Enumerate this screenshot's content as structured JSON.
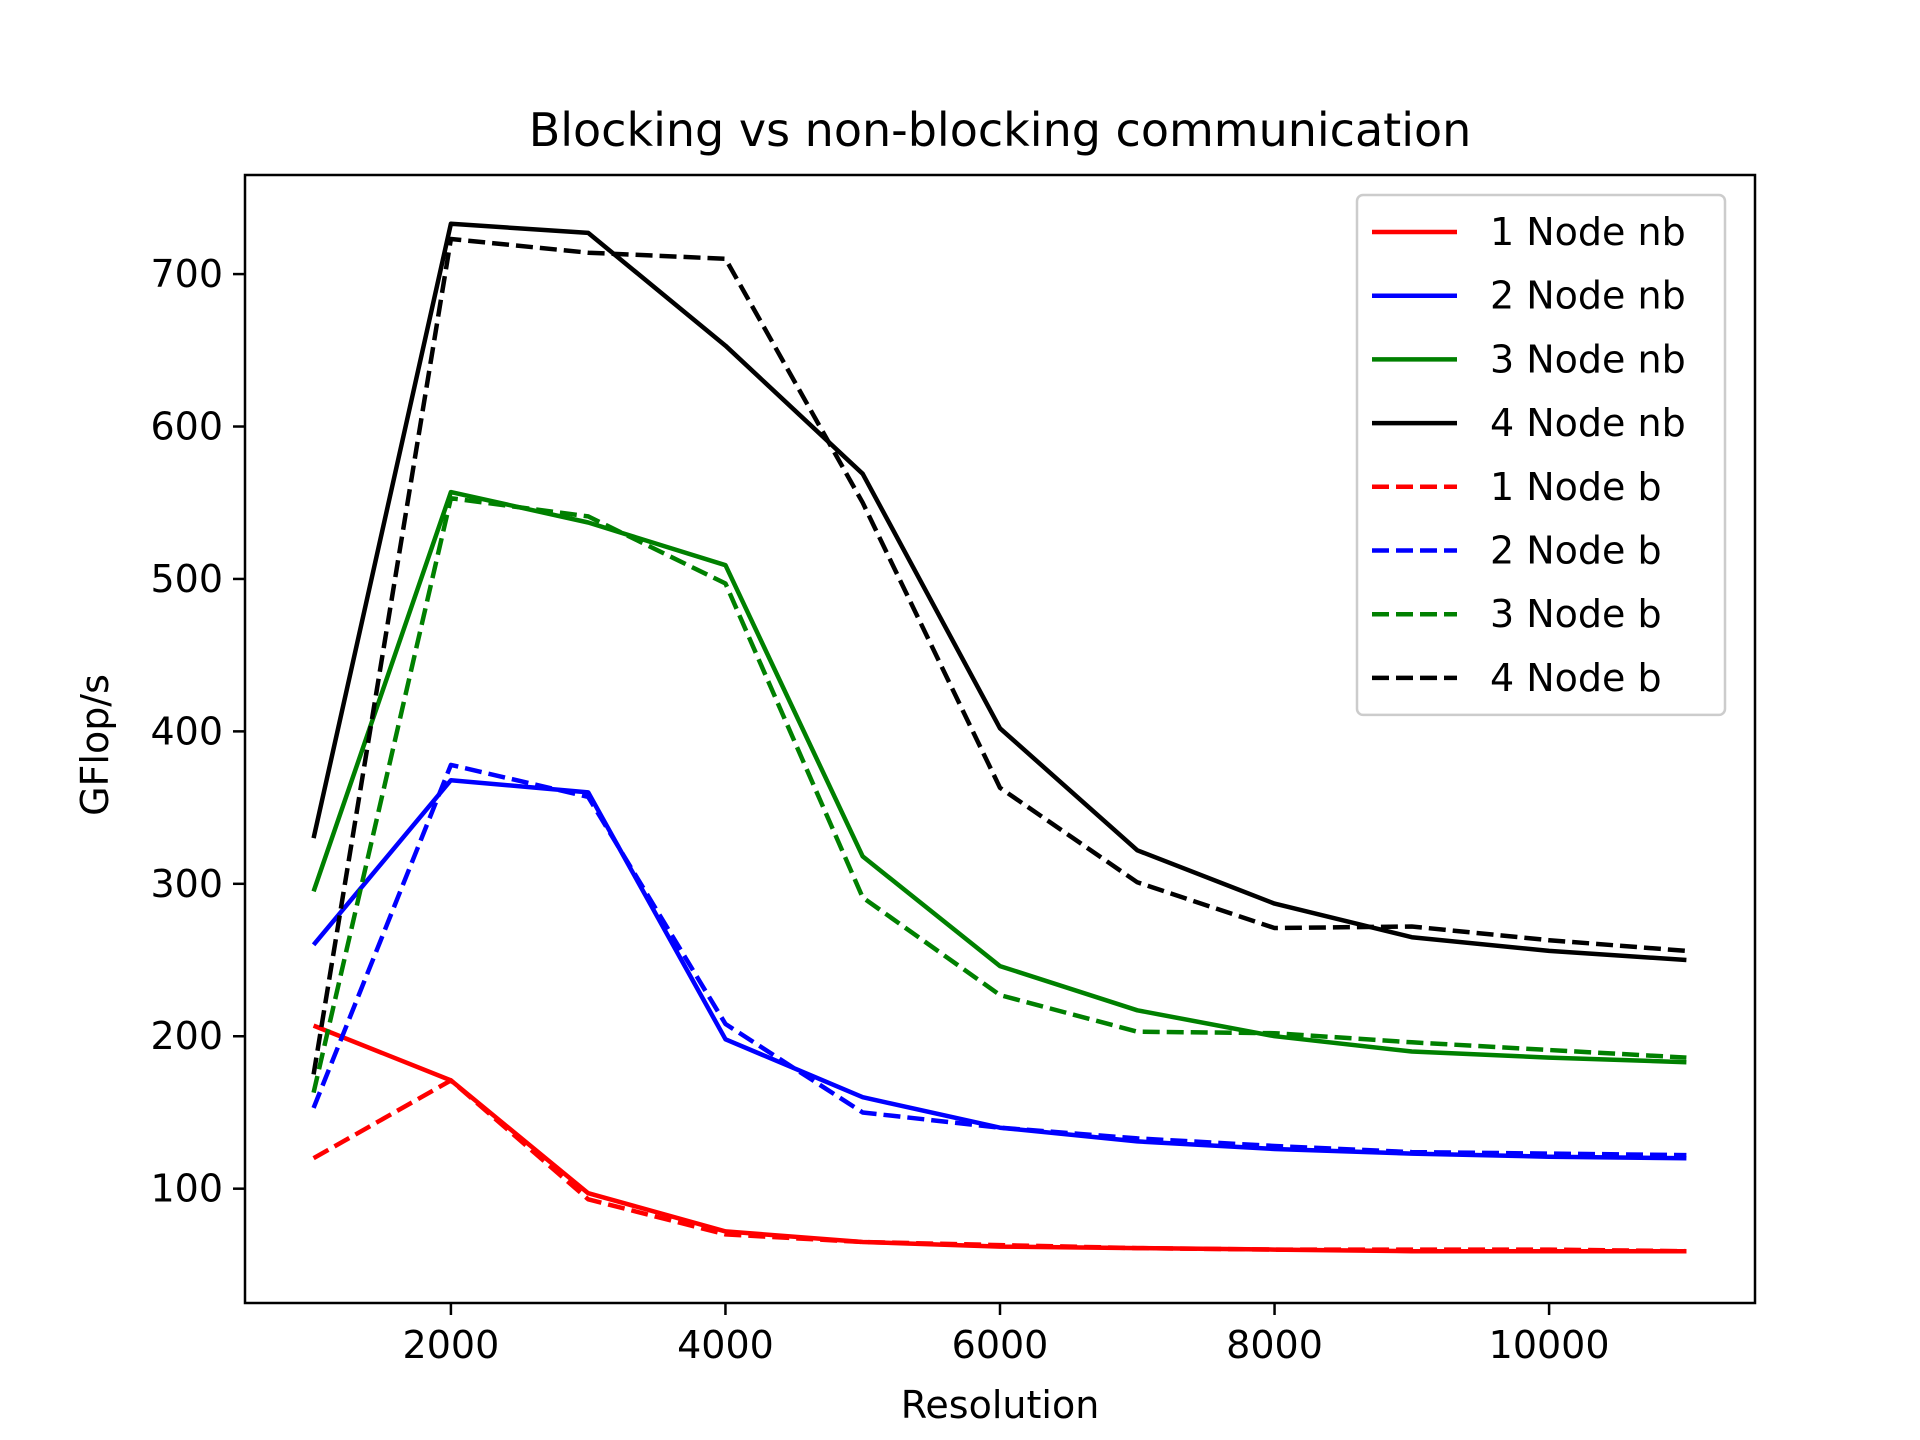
{
  "chart_data": {
    "type": "line",
    "title": "Blocking vs non-blocking communication",
    "xlabel": "Resolution",
    "ylabel": "GFlop/s",
    "xlim": [
      500,
      11500
    ],
    "ylim": [
      25,
      765
    ],
    "xticks": [
      2000,
      4000,
      6000,
      8000,
      10000
    ],
    "yticks": [
      100,
      200,
      300,
      400,
      500,
      600,
      700
    ],
    "grid": false,
    "legend_position": "top-right",
    "x": [
      1000,
      2000,
      3000,
      4000,
      5000,
      6000,
      7000,
      8000,
      9000,
      10000,
      11000
    ],
    "series": [
      {
        "name": "1 Node nb",
        "color": "#ff0000",
        "style": "solid",
        "values": [
          207,
          171,
          97,
          72,
          65,
          62,
          61,
          60,
          59,
          59,
          59
        ]
      },
      {
        "name": "2 Node nb",
        "color": "#0000ff",
        "style": "solid",
        "values": [
          260,
          368,
          360,
          198,
          160,
          140,
          131,
          126,
          123,
          121,
          120
        ]
      },
      {
        "name": "3 Node nb",
        "color": "#008000",
        "style": "solid",
        "values": [
          295,
          557,
          537,
          509,
          318,
          246,
          217,
          200,
          190,
          186,
          183
        ]
      },
      {
        "name": "4 Node nb",
        "color": "#000000",
        "style": "solid",
        "values": [
          330,
          733,
          727,
          653,
          569,
          402,
          322,
          287,
          265,
          256,
          250
        ]
      },
      {
        "name": "1 Node b",
        "color": "#ff0000",
        "style": "dashed",
        "values": [
          120,
          171,
          93,
          70,
          65,
          63,
          61,
          60,
          60,
          60,
          59
        ]
      },
      {
        "name": "2 Node b",
        "color": "#0000ff",
        "style": "dashed",
        "values": [
          153,
          378,
          357,
          208,
          150,
          140,
          133,
          128,
          124,
          123,
          122
        ]
      },
      {
        "name": "3 Node b",
        "color": "#008000",
        "style": "dashed",
        "values": [
          163,
          553,
          541,
          497,
          291,
          227,
          203,
          202,
          196,
          191,
          186
        ]
      },
      {
        "name": "4 Node b",
        "color": "#000000",
        "style": "dashed",
        "values": [
          175,
          723,
          714,
          710,
          550,
          363,
          301,
          271,
          272,
          263,
          256
        ]
      }
    ]
  }
}
